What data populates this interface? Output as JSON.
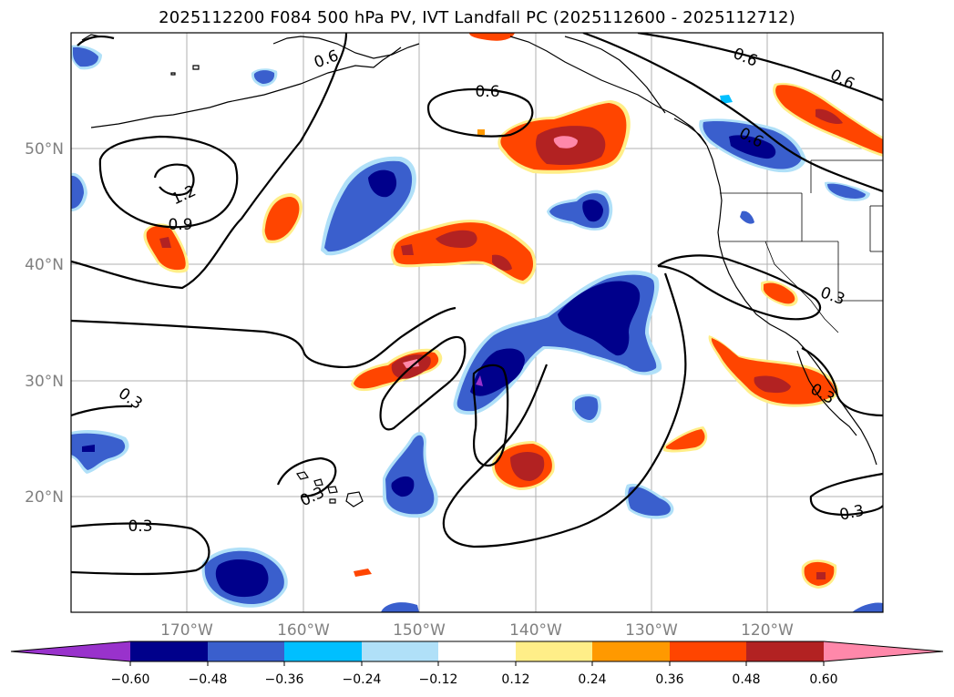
{
  "title": "2025112200 F084 500 hPa PV, IVT Landfall PC (2025112600 - 2025112712)",
  "map": {
    "projection": "PlateCarree",
    "extent": {
      "lon_min": -180,
      "lon_max": -110,
      "lat_min": 10,
      "lat_max": 60
    },
    "lat_labels": [
      "50°N",
      "40°N",
      "30°N",
      "20°N"
    ],
    "lon_labels": [
      "170°W",
      "160°W",
      "150°W",
      "140°W",
      "130°W",
      "120°W"
    ],
    "contour_labels": [
      "0.6",
      "0.6",
      "0.6",
      "0.6",
      "0.6",
      "1.2",
      "0.9",
      "0.3",
      "0.3",
      "0.3",
      "0.3",
      "0.3",
      "0.3"
    ],
    "colors": {
      "pos_pink": "#ff88aa",
      "pos_darkred": "#b22222",
      "pos_orangered": "#ff4500",
      "pos_orange": "#ff9900",
      "pos_yellow": "#ffee88",
      "neg_lightblue": "#b0e0f8",
      "neg_cyan": "#00bfff",
      "neg_blue": "#3a5fcd",
      "neg_navy": "#00008b",
      "neg_purple": "#9932cc"
    }
  },
  "colorbar": {
    "labels": [
      "−0.60",
      "−0.48",
      "−0.36",
      "−0.24",
      "−0.12",
      "0.12",
      "0.24",
      "0.36",
      "0.48",
      "0.60"
    ],
    "colors": [
      "#9932cc",
      "#00008b",
      "#3a5fcd",
      "#4169e1",
      "#00bfff",
      "#b0e0f8",
      "#ffffff",
      "#ffee88",
      "#ff9900",
      "#ff4500",
      "#b22222",
      "#ff88aa"
    ]
  }
}
